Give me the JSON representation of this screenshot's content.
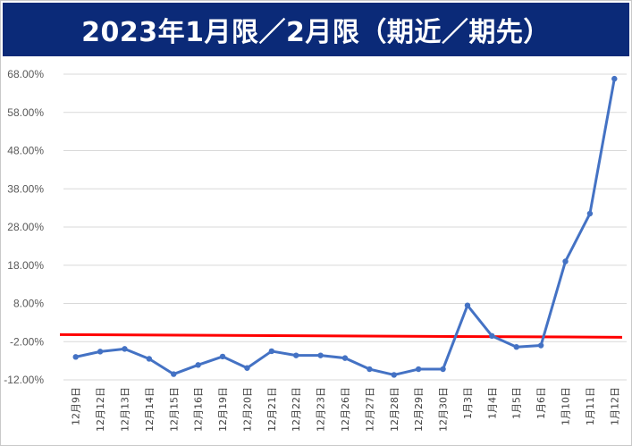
{
  "title": "2023年1月限／2月限（期近／期先）",
  "colors": {
    "title_bg": "#0b2a78",
    "title_text": "#ffffff",
    "series": "#4472c4",
    "reference_line": "#ff0000",
    "grid": "#d9d9d9"
  },
  "chart_data": {
    "type": "line",
    "title": "2023年1月限／2月限（期近／期先）",
    "xlabel": "",
    "ylabel": "",
    "categories": [
      "12月9日",
      "12月12日",
      "12月13日",
      "12月14日",
      "12月15日",
      "12月16日",
      "12月19日",
      "12月20日",
      "12月21日",
      "12月22日",
      "12月23日",
      "12月26日",
      "12月27日",
      "12月28日",
      "12月29日",
      "12月30日",
      "1月3日",
      "1月4日",
      "1月5日",
      "1月6日",
      "1月10日",
      "1月11日",
      "1月12日"
    ],
    "series": [
      {
        "values": [
          -6.0,
          -4.6,
          -3.9,
          -6.5,
          -10.5,
          -8.1,
          -5.9,
          -8.9,
          -4.5,
          -5.6,
          -5.6,
          -6.3,
          -9.2,
          -10.7,
          -9.2,
          -9.2,
          7.5,
          -0.5,
          -3.4,
          -3.0,
          19.0,
          31.5,
          66.8
        ]
      }
    ],
    "reference_line": -0.5,
    "ylim": [
      -12,
      68
    ],
    "yticks": [
      "68.00%",
      "58.00%",
      "48.00%",
      "38.00%",
      "28.00%",
      "18.00%",
      "8.00%",
      "-2.00%",
      "-12.00%"
    ],
    "ytick_values": [
      68,
      58,
      48,
      38,
      28,
      18,
      8,
      -2,
      -12
    ],
    "grid": true,
    "legend": "none"
  }
}
